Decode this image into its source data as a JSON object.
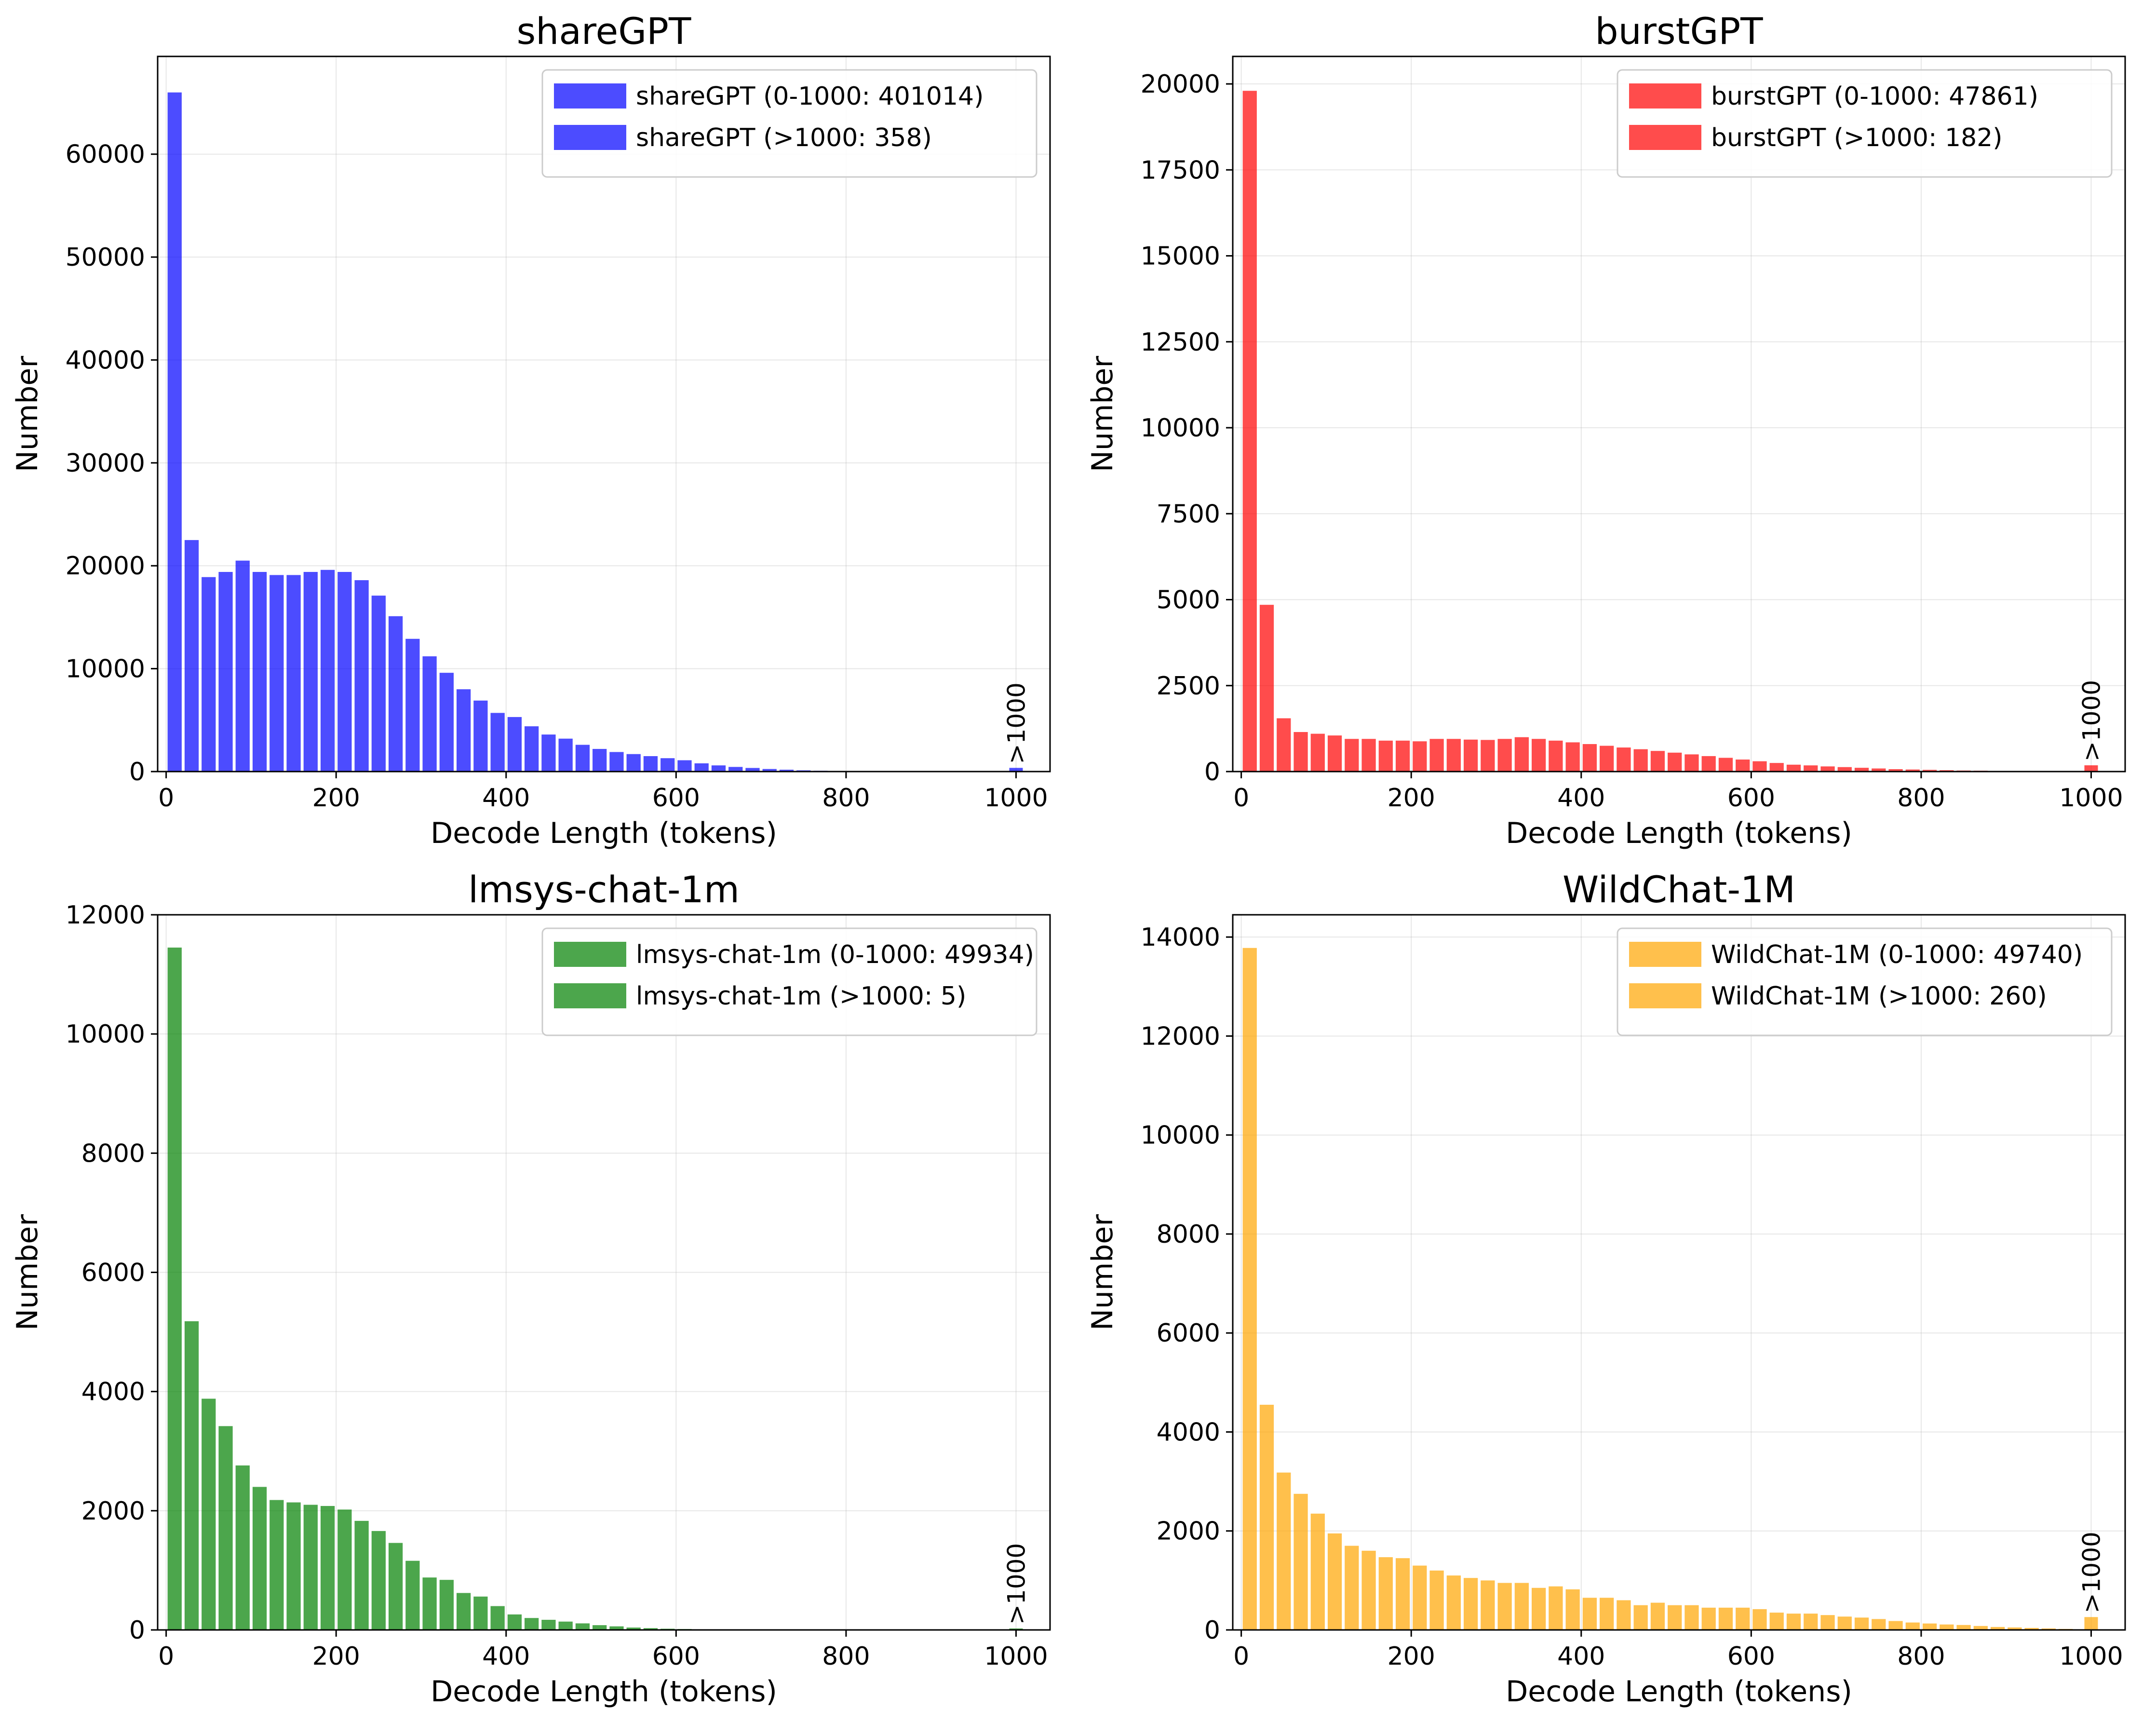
{
  "chart_data": [
    {
      "type": "bar",
      "title": "shareGPT",
      "xlabel": "Decode Length (tokens)",
      "ylabel": "Number",
      "xlim": [
        -10,
        1040
      ],
      "ylim": [
        0,
        69500
      ],
      "xticks": [
        0,
        200,
        400,
        600,
        800,
        1000
      ],
      "yticks": [
        0,
        10000,
        20000,
        30000,
        40000,
        50000,
        60000
      ],
      "grid": true,
      "legend_position": "top-right",
      "color": "#0000ff",
      "bin_width": 20,
      "bin_starts": [
        0,
        20,
        40,
        60,
        80,
        100,
        120,
        140,
        160,
        180,
        200,
        220,
        240,
        260,
        280,
        300,
        320,
        340,
        360,
        380,
        400,
        420,
        440,
        460,
        480,
        500,
        520,
        540,
        560,
        580,
        600,
        620,
        640,
        660,
        680,
        700,
        720,
        740,
        760,
        780,
        800,
        820,
        840,
        860,
        880,
        900,
        920,
        940,
        960,
        980
      ],
      "values": [
        66000,
        22500,
        18900,
        19400,
        20500,
        19400,
        19100,
        19100,
        19400,
        19600,
        19400,
        18600,
        17100,
        15100,
        12900,
        11200,
        9600,
        8000,
        6900,
        5700,
        5300,
        4400,
        3600,
        3200,
        2600,
        2200,
        1900,
        1700,
        1500,
        1300,
        1100,
        800,
        600,
        450,
        350,
        250,
        180,
        120,
        80,
        50,
        30,
        20,
        10,
        5,
        3,
        0,
        0,
        0,
        0,
        0
      ],
      "overflow": {
        "x": 1000,
        "value": 358,
        "label": ">1000"
      },
      "legend": [
        "shareGPT (0-1000: 401014)",
        "shareGPT (>1000: 358)"
      ]
    },
    {
      "type": "bar",
      "title": "burstGPT",
      "xlabel": "Decode Length (tokens)",
      "ylabel": "Number",
      "xlim": [
        -10,
        1040
      ],
      "ylim": [
        0,
        20800
      ],
      "xticks": [
        0,
        200,
        400,
        600,
        800,
        1000
      ],
      "yticks": [
        0,
        2500,
        5000,
        7500,
        10000,
        12500,
        15000,
        17500,
        20000
      ],
      "grid": true,
      "legend_position": "top-right",
      "color": "#ff0000",
      "bin_width": 20,
      "bin_starts": [
        0,
        20,
        40,
        60,
        80,
        100,
        120,
        140,
        160,
        180,
        200,
        220,
        240,
        260,
        280,
        300,
        320,
        340,
        360,
        380,
        400,
        420,
        440,
        460,
        480,
        500,
        520,
        540,
        560,
        580,
        600,
        620,
        640,
        660,
        680,
        700,
        720,
        740,
        760,
        780,
        800,
        820,
        840,
        860,
        880,
        900,
        920,
        940,
        960,
        980
      ],
      "values": [
        19800,
        4850,
        1550,
        1150,
        1100,
        1050,
        950,
        950,
        900,
        900,
        880,
        950,
        950,
        930,
        920,
        950,
        1000,
        950,
        900,
        850,
        800,
        750,
        700,
        650,
        600,
        550,
        500,
        450,
        400,
        350,
        300,
        250,
        200,
        180,
        150,
        130,
        110,
        90,
        70,
        60,
        50,
        40,
        30,
        25,
        20,
        15,
        10,
        8,
        5,
        3
      ],
      "overflow": {
        "x": 1000,
        "value": 182,
        "label": ">1000"
      },
      "legend": [
        "burstGPT (0-1000: 47861)",
        "burstGPT (>1000: 182)"
      ]
    },
    {
      "type": "bar",
      "title": "lmsys-chat-1m",
      "xlabel": "Decode Length (tokens)",
      "ylabel": "Number",
      "xlim": [
        -10,
        1040
      ],
      "ylim": [
        0,
        12000
      ],
      "xticks": [
        0,
        200,
        400,
        600,
        800,
        1000
      ],
      "yticks": [
        0,
        2000,
        4000,
        6000,
        8000,
        10000,
        12000
      ],
      "grid": true,
      "legend_position": "top-right",
      "color": "#008000",
      "bin_width": 20,
      "bin_starts": [
        0,
        20,
        40,
        60,
        80,
        100,
        120,
        140,
        160,
        180,
        200,
        220,
        240,
        260,
        280,
        300,
        320,
        340,
        360,
        380,
        400,
        420,
        440,
        460,
        480,
        500,
        520,
        540,
        560,
        580,
        600,
        620,
        640,
        660,
        680,
        700,
        720,
        740,
        760,
        780,
        800,
        820,
        840,
        860,
        880,
        900,
        920,
        940,
        960,
        980
      ],
      "values": [
        11450,
        5180,
        3880,
        3420,
        2760,
        2400,
        2180,
        2140,
        2100,
        2080,
        2020,
        1830,
        1660,
        1460,
        1160,
        880,
        840,
        620,
        560,
        400,
        260,
        200,
        170,
        140,
        110,
        80,
        60,
        40,
        30,
        20,
        15,
        10,
        8,
        5,
        3,
        2,
        1,
        0,
        0,
        0,
        0,
        0,
        0,
        0,
        0,
        0,
        0,
        0,
        0,
        0
      ],
      "overflow": {
        "x": 1000,
        "value": 5,
        "label": ">1000"
      },
      "legend": [
        "lmsys-chat-1m (0-1000: 49934)",
        "lmsys-chat-1m (>1000: 5)"
      ]
    },
    {
      "type": "bar",
      "title": "WildChat-1M",
      "xlabel": "Decode Length (tokens)",
      "ylabel": "Number",
      "xlim": [
        -10,
        1040
      ],
      "ylim": [
        0,
        14450
      ],
      "xticks": [
        0,
        200,
        400,
        600,
        800,
        1000
      ],
      "yticks": [
        0,
        2000,
        4000,
        6000,
        8000,
        10000,
        12000,
        14000
      ],
      "grid": true,
      "legend_position": "top-right",
      "color": "#ffa500",
      "bin_width": 20,
      "bin_starts": [
        0,
        20,
        40,
        60,
        80,
        100,
        120,
        140,
        160,
        180,
        200,
        220,
        240,
        260,
        280,
        300,
        320,
        340,
        360,
        380,
        400,
        420,
        440,
        460,
        480,
        500,
        520,
        540,
        560,
        580,
        600,
        620,
        640,
        660,
        680,
        700,
        720,
        740,
        760,
        780,
        800,
        820,
        840,
        860,
        880,
        900,
        920,
        940,
        960,
        980
      ],
      "values": [
        13780,
        4550,
        3180,
        2750,
        2350,
        1950,
        1700,
        1600,
        1470,
        1450,
        1300,
        1200,
        1100,
        1050,
        1000,
        950,
        950,
        850,
        880,
        820,
        650,
        650,
        600,
        500,
        550,
        500,
        500,
        450,
        450,
        450,
        420,
        350,
        330,
        330,
        300,
        270,
        250,
        220,
        180,
        150,
        130,
        110,
        100,
        80,
        60,
        50,
        40,
        30,
        20,
        10
      ],
      "overflow": {
        "x": 1000,
        "value": 260,
        "label": ">1000"
      },
      "legend": [
        "WildChat-1M (0-1000: 49740)",
        "WildChat-1M (>1000: 260)"
      ]
    }
  ]
}
